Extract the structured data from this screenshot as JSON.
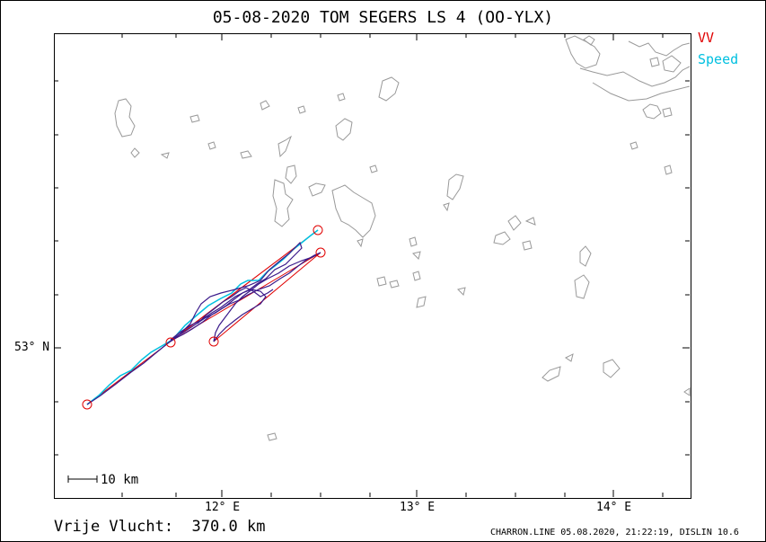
{
  "title": "05-08-2020   TOM SEGERS   LS 4 (OO-YLX)",
  "legend": {
    "vv": "VV",
    "speed": "Speed",
    "vv_color": "#e00000",
    "speed_color": "#00c0e0",
    "track_color": "#3a1a8a"
  },
  "axes": {
    "lat_label": "53° N",
    "lon_labels": [
      "12° E",
      "13° E",
      "14° E"
    ]
  },
  "scale": {
    "label": "10 km"
  },
  "distance": {
    "label": "Vrije Vlucht:",
    "value": "370.0 km"
  },
  "footer": "CHARRON.LINE 05.08.2020, 21:22:19, DISLIN 10.6"
}
